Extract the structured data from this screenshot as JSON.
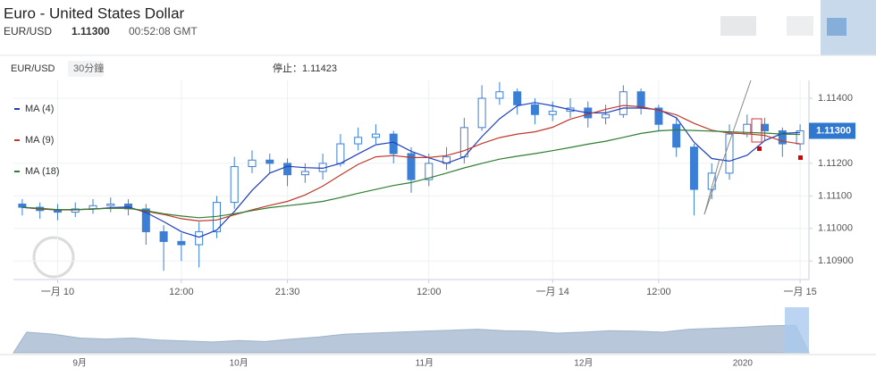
{
  "header": {
    "title": "Euro - United States Dollar",
    "symbol": "EUR/USD",
    "price": "1.11300",
    "time": "00:52:08 GMT"
  },
  "chart_data": {
    "type": "candlestick",
    "symbol": "EUR/USD",
    "interval": "30分鐘",
    "stop_label": "停止：1.11423",
    "categories": [
      null,
      null,
      "一月 10",
      null,
      null,
      null,
      null,
      null,
      null,
      "12:00",
      null,
      null,
      null,
      null,
      null,
      "21:30",
      null,
      null,
      null,
      null,
      null,
      null,
      null,
      "12:00",
      null,
      null,
      null,
      null,
      null,
      null,
      "一月 14",
      null,
      null,
      null,
      null,
      null,
      "12:00",
      null,
      null,
      null,
      null,
      null,
      null,
      null,
      "一月 15"
    ],
    "open": [
      1.11075,
      1.11065,
      1.11055,
      1.1105,
      1.1106,
      1.1107,
      1.11075,
      1.1106,
      1.1099,
      1.1096,
      1.1095,
      1.1099,
      1.1108,
      1.1119,
      1.1121,
      1.112,
      1.11165,
      1.11175,
      1.112,
      1.1126,
      1.1128,
      1.1129,
      1.1123,
      1.1115,
      1.112,
      1.1122,
      1.1131,
      1.114,
      1.1142,
      1.1138,
      1.1135,
      1.1136,
      1.1137,
      1.1134,
      1.1135,
      1.1142,
      1.1137,
      1.1132,
      1.1125,
      1.1112,
      1.1117,
      1.1129,
      1.1132,
      1.113,
      1.1126
    ],
    "high": [
      1.1109,
      1.1108,
      1.11075,
      1.1108,
      1.1109,
      1.11095,
      1.1109,
      1.11075,
      1.1101,
      1.10985,
      1.1102,
      1.111,
      1.1122,
      1.1124,
      1.1123,
      1.11215,
      1.112,
      1.1123,
      1.1129,
      1.1131,
      1.1132,
      1.113,
      1.1125,
      1.1123,
      1.1125,
      1.1134,
      1.1144,
      1.1145,
      1.1143,
      1.114,
      1.1139,
      1.114,
      1.1139,
      1.1138,
      1.1144,
      1.1143,
      1.1138,
      1.1134,
      1.1126,
      1.112,
      1.1132,
      1.1135,
      1.1134,
      1.1131,
      1.1132
    ],
    "low": [
      1.1104,
      1.1103,
      1.11025,
      1.11035,
      1.11045,
      1.1105,
      1.1104,
      1.1095,
      1.1087,
      1.109,
      1.1088,
      1.1097,
      1.1106,
      1.1117,
      1.1117,
      1.1113,
      1.1114,
      1.1115,
      1.1119,
      1.1124,
      1.1126,
      1.112,
      1.1111,
      1.1113,
      1.1118,
      1.112,
      1.113,
      1.1138,
      1.1135,
      1.1132,
      1.1133,
      1.1134,
      1.1131,
      1.1132,
      1.1134,
      1.1135,
      1.113,
      1.1122,
      1.1104,
      1.1109,
      1.1115,
      1.1128,
      1.1127,
      1.1122,
      1.1124
    ],
    "close": [
      1.11065,
      1.11055,
      1.1105,
      1.1106,
      1.1107,
      1.11075,
      1.1106,
      1.1099,
      1.1096,
      1.1095,
      1.1099,
      1.1108,
      1.1119,
      1.1121,
      1.112,
      1.11165,
      1.11175,
      1.112,
      1.1126,
      1.1128,
      1.1129,
      1.1123,
      1.1115,
      1.112,
      1.1122,
      1.1131,
      1.114,
      1.1142,
      1.1138,
      1.1135,
      1.1136,
      1.1137,
      1.1134,
      1.1135,
      1.1142,
      1.1137,
      1.1132,
      1.1125,
      1.1112,
      1.1117,
      1.1129,
      1.1132,
      1.113,
      1.1126,
      1.113
    ],
    "up_color": "#ffffff",
    "down_color": "#3a7fd5",
    "candle_stroke": "#3a7fd5",
    "series": [
      {
        "name": "MA (4)",
        "color": "#1f3fbf",
        "values": [
          1.11065,
          1.1106,
          1.11057,
          1.11058,
          1.11059,
          1.11064,
          1.11066,
          1.11049,
          1.11021,
          1.1099,
          1.10973,
          1.10995,
          1.11052,
          1.11117,
          1.1117,
          1.11191,
          1.11187,
          1.11185,
          1.112,
          1.11229,
          1.11257,
          1.11265,
          1.11237,
          1.11217,
          1.112,
          1.1122,
          1.11282,
          1.11337,
          1.11377,
          1.11387,
          1.11377,
          1.11365,
          1.11355,
          1.11355,
          1.1137,
          1.1137,
          1.11365,
          1.1134,
          1.11265,
          1.11215,
          1.11207,
          1.11225,
          1.1127,
          1.11292,
          1.11295
        ]
      },
      {
        "name": "MA (9)",
        "color": "#c0392b",
        "values": [
          1.11065,
          1.1106,
          1.11057,
          1.11057,
          1.1106,
          1.11062,
          1.11062,
          1.11053,
          1.11043,
          1.1103,
          1.11023,
          1.11026,
          1.11042,
          1.11057,
          1.11071,
          1.11083,
          1.11103,
          1.1113,
          1.11164,
          1.11197,
          1.1122,
          1.11224,
          1.11218,
          1.11218,
          1.11224,
          1.11239,
          1.11261,
          1.11279,
          1.1129,
          1.11297,
          1.11311,
          1.11336,
          1.11351,
          1.11366,
          1.11378,
          1.11374,
          1.11363,
          1.11349,
          1.11323,
          1.11302,
          1.11293,
          1.11291,
          1.11286,
          1.11268,
          1.1126
        ]
      },
      {
        "name": "MA (18)",
        "color": "#2e7d32",
        "values": [
          1.11065,
          1.11062,
          1.11058,
          1.11058,
          1.1106,
          1.11062,
          1.11062,
          1.11055,
          1.11045,
          1.11038,
          1.11033,
          1.11037,
          1.11045,
          1.11055,
          1.11064,
          1.1107,
          1.11076,
          1.11083,
          1.11095,
          1.11108,
          1.1112,
          1.11132,
          1.11141,
          1.11155,
          1.1117,
          1.11186,
          1.112,
          1.11213,
          1.11222,
          1.1123,
          1.11239,
          1.11249,
          1.11259,
          1.11268,
          1.1128,
          1.11292,
          1.113,
          1.11303,
          1.11301,
          1.11299,
          1.11297,
          1.11295,
          1.11293,
          1.1129,
          1.11289
        ]
      }
    ],
    "ylim": [
      1.10843,
      1.11455
    ],
    "yticks": [
      {
        "value": 1.109,
        "label": "1.10900"
      },
      {
        "value": 1.11,
        "label": "1.11000"
      },
      {
        "value": 1.111,
        "label": "1.11100"
      },
      {
        "value": 1.112,
        "label": "1.11200"
      },
      {
        "value": 1.114,
        "label": "1.11400"
      }
    ],
    "last_price": {
      "value": 1.113,
      "label": "1.11300"
    },
    "grid": true,
    "navigator": {
      "color": "#b8c7d9",
      "categories": [
        null,
        null,
        "9月",
        null,
        null,
        null,
        null,
        null,
        "10月",
        null,
        null,
        null,
        null,
        null,
        null,
        "11月",
        null,
        null,
        null,
        null,
        null,
        "12月",
        null,
        null,
        null,
        null,
        null,
        "2020",
        null,
        null
      ],
      "values": [
        42,
        38,
        30,
        28,
        30,
        26,
        24,
        22,
        25,
        23,
        28,
        32,
        38,
        40,
        42,
        44,
        46,
        48,
        45,
        44,
        40,
        42,
        45,
        44,
        42,
        48,
        50,
        52,
        55,
        56
      ]
    }
  }
}
